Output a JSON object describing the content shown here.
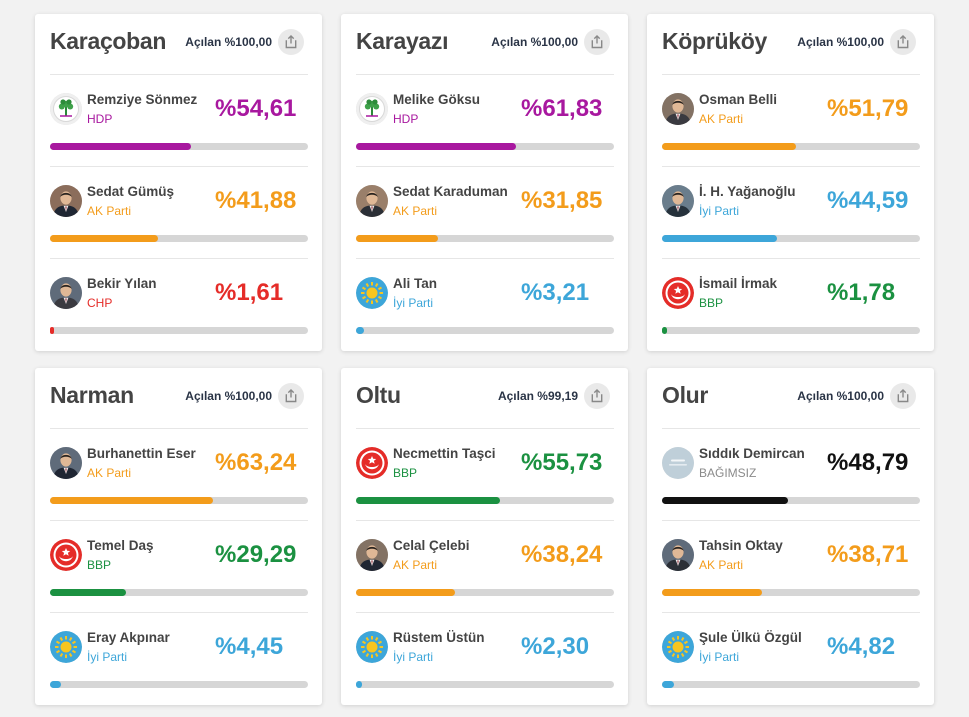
{
  "colors": {
    "hdp": "#a8189f",
    "akp": "#f39c1b",
    "chp": "#e52c28",
    "iyi": "#3da6d9",
    "bbp": "#1b9141",
    "independent": "#111111",
    "bar_bg": "#d6d6d6"
  },
  "cards": [
    {
      "district": "Karaçoban",
      "opened": "Açılan %100,00",
      "candidates": [
        {
          "name": "Remziye Sönmez",
          "party": "HDP",
          "party_key": "hdp",
          "percent_label": "%54,61",
          "percent": 54.61,
          "avatar": "hdp-logo"
        },
        {
          "name": "Sedat Gümüş",
          "party": "AK Parti",
          "party_key": "akp",
          "percent_label": "%41,88",
          "percent": 41.88,
          "avatar": "photo"
        },
        {
          "name": "Bekir Yılan",
          "party": "CHP",
          "party_key": "chp",
          "percent_label": "%1,61",
          "percent": 1.61,
          "avatar": "photo"
        }
      ]
    },
    {
      "district": "Karayazı",
      "opened": "Açılan %100,00",
      "candidates": [
        {
          "name": "Melike Göksu",
          "party": "HDP",
          "party_key": "hdp",
          "percent_label": "%61,83",
          "percent": 61.83,
          "avatar": "hdp-logo"
        },
        {
          "name": "Sedat Karaduman",
          "party": "AK Parti",
          "party_key": "akp",
          "percent_label": "%31,85",
          "percent": 31.85,
          "avatar": "photo"
        },
        {
          "name": "Ali Tan",
          "party": "İyi Parti",
          "party_key": "iyi",
          "percent_label": "%3,21",
          "percent": 3.21,
          "avatar": "iyi-logo"
        }
      ]
    },
    {
      "district": "Köprüköy",
      "opened": "Açılan %100,00",
      "candidates": [
        {
          "name": "Osman Belli",
          "party": "AK Parti",
          "party_key": "akp",
          "percent_label": "%51,79",
          "percent": 51.79,
          "avatar": "photo"
        },
        {
          "name": "İ. H. Yağanoğlu",
          "party": "İyi Parti",
          "party_key": "iyi",
          "percent_label": "%44,59",
          "percent": 44.59,
          "avatar": "photo"
        },
        {
          "name": "İsmail İrmak",
          "party": "BBP",
          "party_key": "bbp",
          "percent_label": "%1,78",
          "percent": 1.78,
          "avatar": "bbp-logo"
        }
      ]
    },
    {
      "district": "Narman",
      "opened": "Açılan %100,00",
      "candidates": [
        {
          "name": "Burhanettin Eser",
          "party": "AK Parti",
          "party_key": "akp",
          "percent_label": "%63,24",
          "percent": 63.24,
          "avatar": "photo"
        },
        {
          "name": "Temel Daş",
          "party": "BBP",
          "party_key": "bbp",
          "percent_label": "%29,29",
          "percent": 29.29,
          "avatar": "bbp-logo"
        },
        {
          "name": "Eray Akpınar",
          "party": "İyi Parti",
          "party_key": "iyi",
          "percent_label": "%4,45",
          "percent": 4.45,
          "avatar": "iyi-logo"
        }
      ]
    },
    {
      "district": "Oltu",
      "opened": "Açılan %99,19",
      "candidates": [
        {
          "name": "Necmettin Taşci",
          "party": "BBP",
          "party_key": "bbp",
          "percent_label": "%55,73",
          "percent": 55.73,
          "avatar": "bbp-logo"
        },
        {
          "name": "Celal Çelebi",
          "party": "AK Parti",
          "party_key": "akp",
          "percent_label": "%38,24",
          "percent": 38.24,
          "avatar": "photo"
        },
        {
          "name": "Rüstem Üstün",
          "party": "İyi Parti",
          "party_key": "iyi",
          "percent_label": "%2,30",
          "percent": 2.3,
          "avatar": "iyi-logo"
        }
      ]
    },
    {
      "district": "Olur",
      "opened": "Açılan %100,00",
      "candidates": [
        {
          "name": "Sıddık Demircan",
          "party": "BAĞIMSIZ",
          "party_key": "independent",
          "percent_label": "%48,79",
          "percent": 48.79,
          "avatar": "independent-logo"
        },
        {
          "name": "Tahsin Oktay",
          "party": "AK Parti",
          "party_key": "akp",
          "percent_label": "%38,71",
          "percent": 38.71,
          "avatar": "photo"
        },
        {
          "name": "Şule Ülkü Özgül",
          "party": "İyi Parti",
          "party_key": "iyi",
          "percent_label": "%4,82",
          "percent": 4.82,
          "avatar": "iyi-logo"
        }
      ]
    }
  ]
}
